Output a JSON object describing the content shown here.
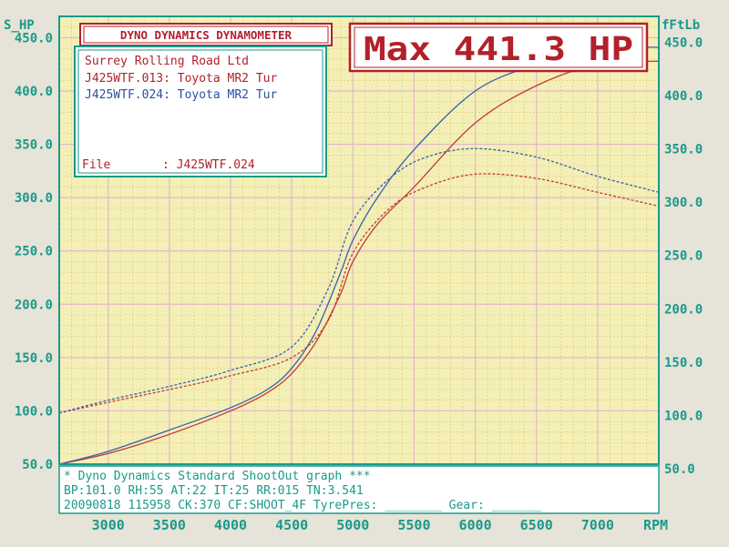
{
  "header": {
    "title": "DYNO DYNAMICS DYNAMOMETER",
    "max_label": "Max 441.3 HP"
  },
  "info": {
    "shop": "Surrey Rolling Road Ltd",
    "run1": "J425WTF.013: Toyota MR2 Tur",
    "run2": "J425WTF.024: Toyota MR2 Tur",
    "file_label": "File",
    "file_value": ": J425WTF.024"
  },
  "footer": {
    "line1": "* Dyno Dynamics Standard ShootOut graph ***",
    "line2": "BP:101.0 RH:55 AT:22 IT:25  RR:015 TN:3.541",
    "line3": "20090818 115958 CK:370 CF:SHOOT_4F TyrePres: ________ Gear: _______"
  },
  "colors": {
    "run1": "#c23a3a",
    "run2": "#3a5fae",
    "axis_text": "#1a9a8a",
    "grid_major": "#e3b7c7",
    "grid_minor": "#d9c86a",
    "background": "#f3efb7"
  },
  "chart_data": {
    "type": "line",
    "xlabel": "RPM",
    "ylabel_left": "S_HP",
    "ylabel_right": "fFtLb",
    "xlim": [
      2600,
      7500
    ],
    "ylim": [
      50,
      470
    ],
    "x_ticks": [
      3000,
      3500,
      4000,
      4500,
      5000,
      5500,
      6000,
      6500,
      7000
    ],
    "y_ticks_left": [
      "50.0",
      "100.0",
      "150.0",
      "200.0",
      "250.0",
      "300.0",
      "350.0",
      "400.0",
      "450.0"
    ],
    "y_ticks_right": [
      "50.0",
      "100.0",
      "150.0",
      "200.0",
      "250.0",
      "300.0",
      "350.0",
      "400.0",
      "450.0"
    ],
    "grid": true,
    "series": [
      {
        "name": "J425WTF.013: Toyota MR2 Tur",
        "kind": "power",
        "color": "#c23a3a",
        "style": "solid",
        "x": [
          2600,
          3000,
          3500,
          4000,
          4300,
          4500,
          4700,
          4900,
          5000,
          5200,
          5500,
          6000,
          6500,
          7000,
          7500
        ],
        "y": [
          50,
          60,
          78,
          100,
          117,
          135,
          165,
          210,
          240,
          275,
          310,
          370,
          405,
          425,
          428
        ]
      },
      {
        "name": "J425WTF.024: Toyota MR2 Tur",
        "kind": "power",
        "color": "#3a5fae",
        "style": "solid",
        "x": [
          2600,
          3000,
          3500,
          4000,
          4300,
          4500,
          4700,
          4900,
          5000,
          5200,
          5500,
          6000,
          6500,
          7000,
          7500
        ],
        "y": [
          50,
          62,
          82,
          103,
          120,
          140,
          175,
          230,
          260,
          300,
          345,
          400,
          425,
          440,
          441
        ]
      },
      {
        "name": "J425WTF.013: Toyota MR2 Tur",
        "kind": "torque",
        "color": "#c23a3a",
        "style": "dashed",
        "x": [
          2600,
          3000,
          3500,
          4000,
          4500,
          4800,
          5000,
          5300,
          5600,
          6000,
          6500,
          7000,
          7500
        ],
        "y": [
          98,
          108,
          120,
          133,
          150,
          185,
          248,
          290,
          310,
          322,
          318,
          305,
          292
        ]
      },
      {
        "name": "J425WTF.024: Toyota MR2 Tur",
        "kind": "torque",
        "color": "#3a5fae",
        "style": "dashed",
        "x": [
          2600,
          3000,
          3500,
          4000,
          4500,
          4800,
          5000,
          5300,
          5600,
          6000,
          6500,
          7000,
          7500
        ],
        "y": [
          98,
          110,
          123,
          138,
          160,
          215,
          278,
          318,
          338,
          346,
          338,
          320,
          305
        ]
      }
    ]
  }
}
